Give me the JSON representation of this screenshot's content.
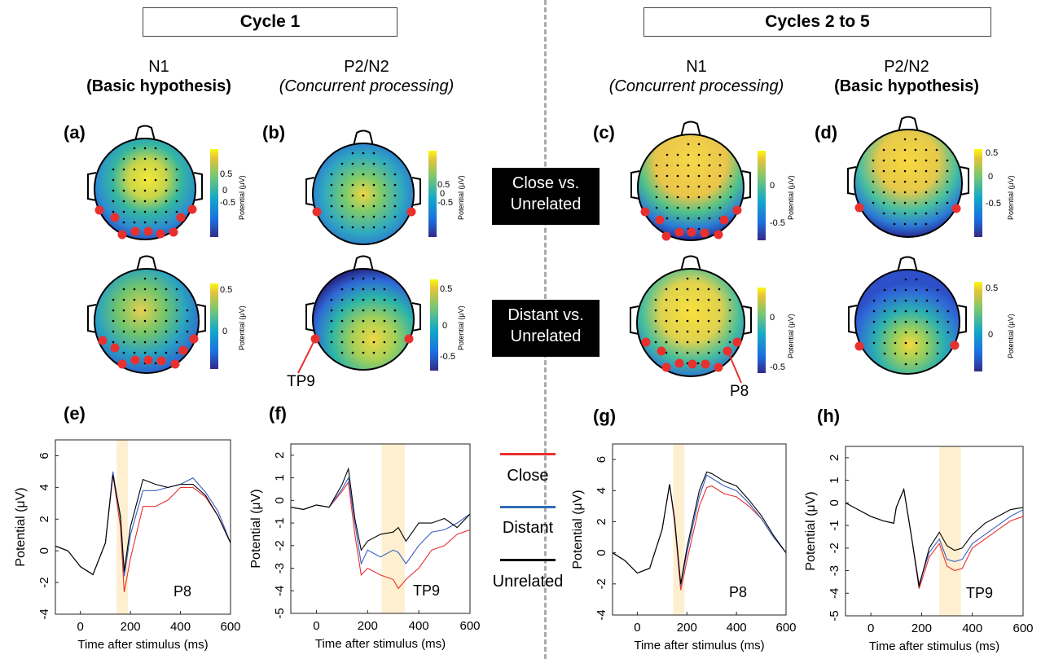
{
  "groups": {
    "cycle1": "Cycle 1",
    "cycles2to5": "Cycles 2 to 5"
  },
  "columns": [
    {
      "component": "N1",
      "hypothesis": "(Basic hypothesis)",
      "style": "bold"
    },
    {
      "component": "P2/N2",
      "hypothesis": "(Concurrent processing)",
      "style": "italic"
    },
    {
      "component": "N1",
      "hypothesis": "(Concurrent processing)",
      "style": "italic"
    },
    {
      "component": "P2/N2",
      "hypothesis": "(Basic hypothesis)",
      "style": "bold"
    }
  ],
  "panel_labels": [
    "(a)",
    "(b)",
    "(c)",
    "(d)",
    "(e)",
    "(f)",
    "(g)",
    "(h)"
  ],
  "row_labels": {
    "close": [
      "Close vs.",
      "Unrelated"
    ],
    "distant": [
      "Distant vs.",
      "Unrelated"
    ]
  },
  "electrode_labels": {
    "tp9": "TP9",
    "p8": "P8"
  },
  "colorbars": {
    "unit_label": "Potential (μV)",
    "a_top": [
      "0.5",
      "0",
      "-0.5"
    ],
    "b_top": [
      "0.5",
      "0",
      "-0.5"
    ],
    "c_top": [
      "0",
      "-0.5"
    ],
    "d_top": [
      "0.5",
      "0",
      "-0.5"
    ],
    "a_bot": [
      "0.5",
      "0"
    ],
    "b_bot": [
      "0.5",
      "0",
      "-0.5"
    ],
    "c_bot": [
      "0",
      "-0.5"
    ],
    "d_bot": [
      "0.5",
      "0"
    ]
  },
  "legend": [
    {
      "label": "Close",
      "color": "#e8312f"
    },
    {
      "label": "Distant",
      "color": "#2f6db5"
    },
    {
      "label": "Unrelated",
      "color": "#000000"
    }
  ],
  "chart_data": [
    {
      "id": "e",
      "type": "line",
      "electrode": "P8",
      "xlabel": "Time after stimulus (ms)",
      "ylabel": "Potential (μV)",
      "xlim": [
        -100,
        600
      ],
      "ylim": [
        -4,
        7
      ],
      "xticks": [
        0,
        200,
        400,
        600
      ],
      "yticks": [
        -4,
        -2,
        0,
        2,
        4,
        6
      ],
      "highlight": [
        145,
        190
      ],
      "x": [
        -100,
        -50,
        0,
        50,
        100,
        130,
        160,
        175,
        200,
        250,
        300,
        350,
        400,
        450,
        500,
        550,
        600
      ],
      "series": [
        {
          "name": "Close",
          "color": "#e8312f",
          "values": [
            0.3,
            0.0,
            -1.0,
            -1.5,
            0.5,
            4.8,
            1.5,
            -2.6,
            -0.5,
            2.8,
            2.8,
            3.2,
            4.0,
            4.0,
            3.4,
            2.2,
            0.5
          ]
        },
        {
          "name": "Distant",
          "color": "#3b5fc0",
          "values": [
            0.3,
            0.0,
            -1.0,
            -1.5,
            0.5,
            5.0,
            2.0,
            -1.6,
            1.0,
            3.8,
            3.8,
            4.0,
            4.2,
            4.6,
            3.7,
            2.5,
            0.5
          ]
        },
        {
          "name": "Unrelated",
          "color": "#000000",
          "values": [
            0.3,
            0.0,
            -1.0,
            -1.5,
            0.5,
            4.8,
            2.2,
            -1.3,
            1.5,
            4.5,
            4.2,
            4.0,
            4.2,
            4.2,
            3.5,
            2.2,
            0.5
          ]
        }
      ]
    },
    {
      "id": "f",
      "type": "line",
      "electrode": "TP9",
      "xlabel": "Time after stimulus (ms)",
      "ylabel": "Potential (μV)",
      "xlim": [
        -100,
        600
      ],
      "ylim": [
        -5,
        2.5
      ],
      "xticks": [
        0,
        200,
        400,
        600
      ],
      "yticks": [
        -5,
        -4,
        -3,
        -2,
        -1,
        0,
        1,
        2
      ],
      "highlight": [
        255,
        345
      ],
      "x": [
        -100,
        -50,
        0,
        50,
        100,
        125,
        150,
        175,
        200,
        250,
        300,
        320,
        350,
        400,
        450,
        500,
        550,
        600
      ],
      "series": [
        {
          "name": "Close",
          "color": "#e8312f",
          "values": [
            -0.3,
            -0.4,
            -0.2,
            -0.3,
            0.4,
            0.8,
            -1.5,
            -3.3,
            -3.0,
            -3.3,
            -3.5,
            -3.9,
            -3.5,
            -3.0,
            -2.2,
            -2.0,
            -1.5,
            -1.3
          ]
        },
        {
          "name": "Distant",
          "color": "#3b5fc0",
          "values": [
            -0.3,
            -0.4,
            -0.2,
            -0.3,
            0.5,
            1.0,
            -1.0,
            -2.8,
            -2.2,
            -2.5,
            -2.2,
            -2.3,
            -2.8,
            -2.0,
            -1.4,
            -1.3,
            -1.0,
            -0.6
          ]
        },
        {
          "name": "Unrelated",
          "color": "#000000",
          "values": [
            -0.3,
            -0.4,
            -0.2,
            -0.3,
            0.7,
            1.4,
            -0.8,
            -2.2,
            -1.8,
            -1.5,
            -1.4,
            -1.2,
            -1.8,
            -1.0,
            -1.0,
            -0.8,
            -1.2,
            -0.6
          ]
        }
      ]
    },
    {
      "id": "g",
      "type": "line",
      "electrode": "P8",
      "xlabel": "Time after stimulus (ms)",
      "ylabel": "Potential (μV)",
      "xlim": [
        -100,
        600
      ],
      "ylim": [
        -4,
        7
      ],
      "xticks": [
        0,
        200,
        400,
        600
      ],
      "yticks": [
        -4,
        -2,
        0,
        2,
        4,
        6
      ],
      "highlight": [
        145,
        190
      ],
      "x": [
        -100,
        -50,
        0,
        50,
        100,
        130,
        150,
        175,
        200,
        250,
        280,
        300,
        350,
        400,
        450,
        500,
        550,
        600
      ],
      "series": [
        {
          "name": "Close",
          "color": "#e8312f",
          "values": [
            0.0,
            -0.5,
            -1.3,
            -1.0,
            1.5,
            4.4,
            2.0,
            -2.4,
            -0.5,
            3.0,
            4.2,
            4.3,
            3.8,
            3.6,
            3.0,
            2.2,
            1.0,
            0.0
          ]
        },
        {
          "name": "Distant",
          "color": "#3b5fc0",
          "values": [
            0.0,
            -0.5,
            -1.3,
            -1.0,
            1.5,
            4.4,
            2.2,
            -2.1,
            0.0,
            3.6,
            5.0,
            4.8,
            4.3,
            4.0,
            3.2,
            2.2,
            1.0,
            0.0
          ]
        },
        {
          "name": "Unrelated",
          "color": "#000000",
          "values": [
            0.0,
            -0.5,
            -1.3,
            -1.0,
            1.5,
            4.4,
            2.2,
            -2.0,
            0.3,
            4.0,
            5.2,
            5.1,
            4.6,
            4.3,
            3.4,
            2.4,
            1.1,
            0.0
          ]
        }
      ]
    },
    {
      "id": "h",
      "type": "line",
      "electrode": "TP9",
      "xlabel": "Time after stimulus (ms)",
      "ylabel": "Potential (μV)",
      "xlim": [
        -100,
        600
      ],
      "ylim": [
        -5,
        2.5
      ],
      "xticks": [
        0,
        200,
        400,
        600
      ],
      "yticks": [
        -5,
        -4,
        -3,
        -2,
        -1,
        0,
        1,
        2
      ],
      "highlight": [
        270,
        355
      ],
      "x": [
        -100,
        -50,
        0,
        50,
        90,
        100,
        130,
        160,
        190,
        230,
        270,
        300,
        330,
        360,
        400,
        450,
        500,
        550,
        600
      ],
      "series": [
        {
          "name": "Close",
          "color": "#e8312f",
          "values": [
            0.0,
            -0.3,
            -0.6,
            -0.8,
            -0.9,
            -0.2,
            0.6,
            -1.5,
            -3.8,
            -2.4,
            -1.8,
            -2.8,
            -3.0,
            -2.9,
            -2.0,
            -1.6,
            -1.2,
            -0.8,
            -0.6
          ]
        },
        {
          "name": "Distant",
          "color": "#3b5fc0",
          "values": [
            0.0,
            -0.3,
            -0.6,
            -0.8,
            -0.9,
            -0.2,
            0.6,
            -1.5,
            -3.6,
            -2.2,
            -1.6,
            -2.5,
            -2.6,
            -2.5,
            -1.8,
            -1.4,
            -1.0,
            -0.6,
            -0.3
          ]
        },
        {
          "name": "Unrelated",
          "color": "#000000",
          "values": [
            0.0,
            -0.3,
            -0.6,
            -0.8,
            -0.9,
            -0.2,
            0.6,
            -1.5,
            -3.7,
            -2.0,
            -1.3,
            -1.9,
            -2.1,
            -2.0,
            -1.4,
            -0.9,
            -0.6,
            -0.3,
            -0.2
          ]
        }
      ]
    }
  ]
}
